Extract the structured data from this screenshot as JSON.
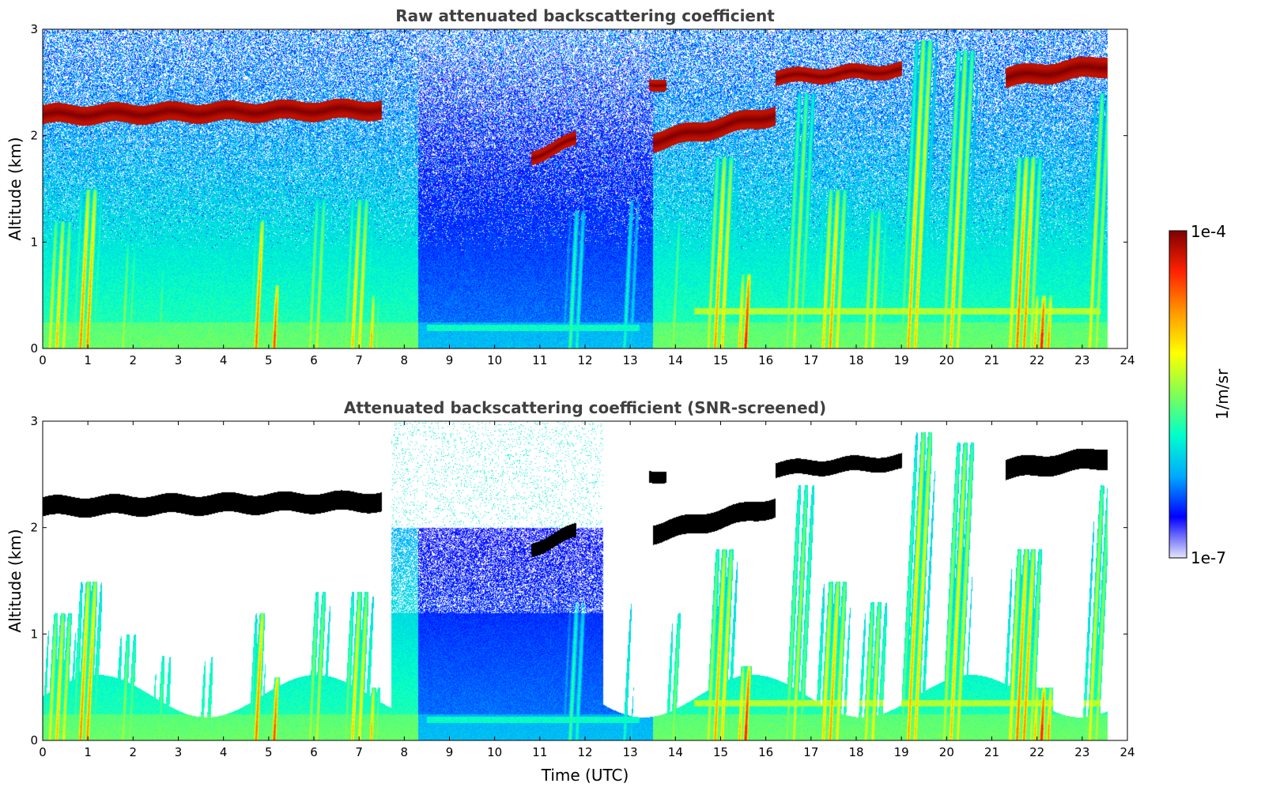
{
  "chart_data": [
    {
      "type": "heatmap",
      "title": "Raw attenuated backscattering coefficient",
      "xlabel": "",
      "ylabel": "Altitude (km)",
      "xlim": [
        0,
        24
      ],
      "ylim": [
        0,
        3
      ],
      "x_ticks": [
        "0",
        "1",
        "2",
        "3",
        "4",
        "5",
        "6",
        "7",
        "8",
        "9",
        "10",
        "11",
        "12",
        "13",
        "14",
        "15",
        "16",
        "17",
        "18",
        "19",
        "20",
        "21",
        "22",
        "23",
        "24"
      ],
      "y_ticks": [
        "0",
        "1",
        "2",
        "3"
      ],
      "grid": false,
      "data_end_time": 23.55,
      "features": {
        "cloud_layers": [
          {
            "start": 0.0,
            "end": 7.5,
            "alt_start": 2.2,
            "alt_end": 2.25,
            "thickness": 0.12
          },
          {
            "start": 10.8,
            "end": 11.8,
            "alt_start": 1.8,
            "alt_end": 1.97,
            "thickness": 0.07
          },
          {
            "start": 13.5,
            "end": 16.2,
            "alt_start": 1.95,
            "alt_end": 2.2,
            "thickness": 0.12
          },
          {
            "start": 13.4,
            "end": 13.8,
            "alt_start": 2.5,
            "alt_end": 2.48,
            "thickness": 0.05
          },
          {
            "start": 16.2,
            "end": 19.0,
            "alt_start": 2.55,
            "alt_end": 2.62,
            "thickness": 0.08
          },
          {
            "start": 21.3,
            "end": 23.55,
            "alt_start": 2.55,
            "alt_end": 2.66,
            "thickness": 0.13
          }
        ],
        "plumes": [
          {
            "t": 0.3,
            "top": 1.2,
            "w": 0.9,
            "i": 0.7
          },
          {
            "t": 0.9,
            "top": 1.5,
            "w": 0.7,
            "i": 0.8
          },
          {
            "t": 1.8,
            "top": 1.0,
            "w": 0.8,
            "i": 0.55
          },
          {
            "t": 2.6,
            "top": 0.8,
            "w": 0.7,
            "i": 0.5
          },
          {
            "t": 3.6,
            "top": 0.8,
            "w": 0.6,
            "i": 0.45
          },
          {
            "t": 4.7,
            "top": 1.2,
            "w": 0.4,
            "i": 0.8
          },
          {
            "t": 5.1,
            "top": 0.6,
            "w": 0.3,
            "i": 0.85
          },
          {
            "t": 6.0,
            "top": 1.4,
            "w": 0.7,
            "i": 0.6
          },
          {
            "t": 6.9,
            "top": 1.4,
            "w": 0.8,
            "i": 0.7
          },
          {
            "t": 7.3,
            "top": 0.5,
            "w": 0.3,
            "i": 0.8
          },
          {
            "t": 8.0,
            "top": 0.8,
            "w": 0.5,
            "i": 0.35
          },
          {
            "t": 11.7,
            "top": 1.3,
            "w": 0.6,
            "i": 0.45
          },
          {
            "t": 12.9,
            "top": 1.4,
            "w": 0.5,
            "i": 0.4
          },
          {
            "t": 13.9,
            "top": 1.2,
            "w": 0.4,
            "i": 0.55
          },
          {
            "t": 14.9,
            "top": 1.8,
            "w": 0.8,
            "i": 0.75
          },
          {
            "t": 15.5,
            "top": 0.7,
            "w": 0.4,
            "i": 0.95
          },
          {
            "t": 16.6,
            "top": 2.4,
            "w": 0.8,
            "i": 0.6
          },
          {
            "t": 17.4,
            "top": 1.5,
            "w": 0.9,
            "i": 0.75
          },
          {
            "t": 18.3,
            "top": 1.3,
            "w": 0.8,
            "i": 0.65
          },
          {
            "t": 19.2,
            "top": 2.9,
            "w": 0.7,
            "i": 0.75
          },
          {
            "t": 20.1,
            "top": 2.8,
            "w": 0.8,
            "i": 0.7
          },
          {
            "t": 21.6,
            "top": 1.8,
            "w": 1.0,
            "i": 0.8
          },
          {
            "t": 22.1,
            "top": 0.5,
            "w": 0.7,
            "i": 0.9
          },
          {
            "t": 23.2,
            "top": 2.4,
            "w": 0.6,
            "i": 0.65
          }
        ]
      }
    },
    {
      "type": "heatmap",
      "title": "Attenuated backscattering coefficient (SNR-screened)",
      "xlabel": "Time (UTC)",
      "ylabel": "Altitude (km)",
      "xlim": [
        0,
        24
      ],
      "ylim": [
        0,
        3
      ],
      "x_ticks": [
        "0",
        "1",
        "2",
        "3",
        "4",
        "5",
        "6",
        "7",
        "8",
        "9",
        "10",
        "11",
        "12",
        "13",
        "14",
        "15",
        "16",
        "17",
        "18",
        "19",
        "20",
        "21",
        "22",
        "23",
        "24"
      ],
      "y_ticks": [
        "0",
        "1",
        "2",
        "3"
      ],
      "grid": false,
      "data_end_time": 23.55,
      "screening": {
        "masked_cloud_color": "#000000",
        "masked_noise_color": "#ffffff",
        "clear_window": [
          7.7,
          12.4
        ]
      }
    }
  ],
  "colorbar": {
    "label": "1/m/sr",
    "max_label": "1e-4",
    "min_label": "1e-7",
    "scale": "log",
    "colormap": "jet",
    "colors": [
      "#e6e6fa",
      "#0000ff",
      "#00aaff",
      "#00ffcc",
      "#7fff55",
      "#ffff00",
      "#ff9900",
      "#ff2200",
      "#7f0000"
    ]
  }
}
